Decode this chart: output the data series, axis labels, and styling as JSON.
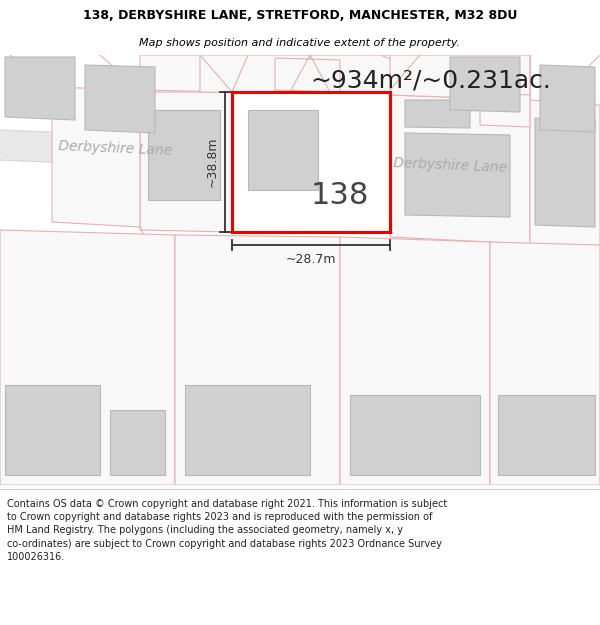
{
  "title_line1": "138, DERBYSHIRE LANE, STRETFORD, MANCHESTER, M32 8DU",
  "title_line2": "Map shows position and indicative extent of the property.",
  "area_text": "~934m²/~0.231ac.",
  "number_label": "138",
  "width_label": "~28.7m",
  "height_label": "~38.8m",
  "road_label_left": "Derbyshire Lane",
  "road_label_right": "Derbyshire Lane",
  "footer_text": "Contains OS data © Crown copyright and database right 2021. This information is subject\nto Crown copyright and database rights 2023 and is reproduced with the permission of\nHM Land Registry. The polygons (including the associated geometry, namely x, y\nco-ordinates) are subject to Crown copyright and database rights 2023 Ordnance Survey\n100026316.",
  "bg_color": "#ffffff",
  "map_bg": "#f0f0f0",
  "highlight_color": "#ee0000",
  "neighbor_fill": "#d0d0d0",
  "neighbor_edge": "#b8b8b8",
  "lot_fill": "#f8f8f8",
  "lot_edge": "#e8b0b0",
  "highlight_fill": "#ffffff",
  "road_fill": "#e8e8e8",
  "road_edge": "#d0d0d0",
  "dim_color": "#333333"
}
